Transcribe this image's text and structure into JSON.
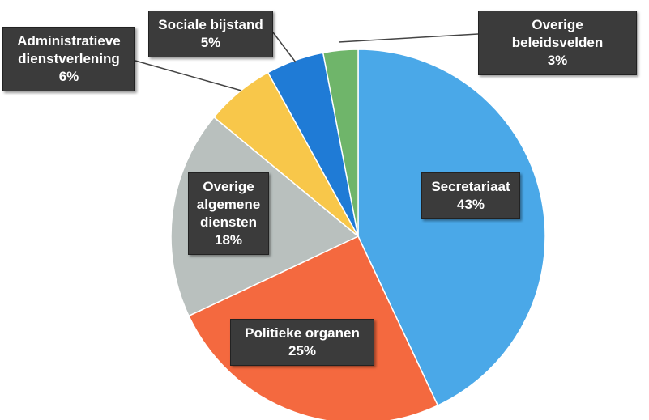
{
  "chart_data": {
    "type": "pie",
    "categories": [
      "Secretariaat",
      "Politieke organen",
      "Overige algemene diensten",
      "Administratieve dienstverlening",
      "Sociale bijstand",
      "Overige beleidsvelden"
    ],
    "values": [
      43,
      25,
      18,
      6,
      5,
      3
    ],
    "value_labels": [
      "43%",
      "25%",
      "18%",
      "6%",
      "5%",
      "3%"
    ],
    "colors": [
      "#4aa8e8",
      "#f4693f",
      "#b9c0be",
      "#f8c74a",
      "#1f7bd6",
      "#6fb56a"
    ]
  }
}
